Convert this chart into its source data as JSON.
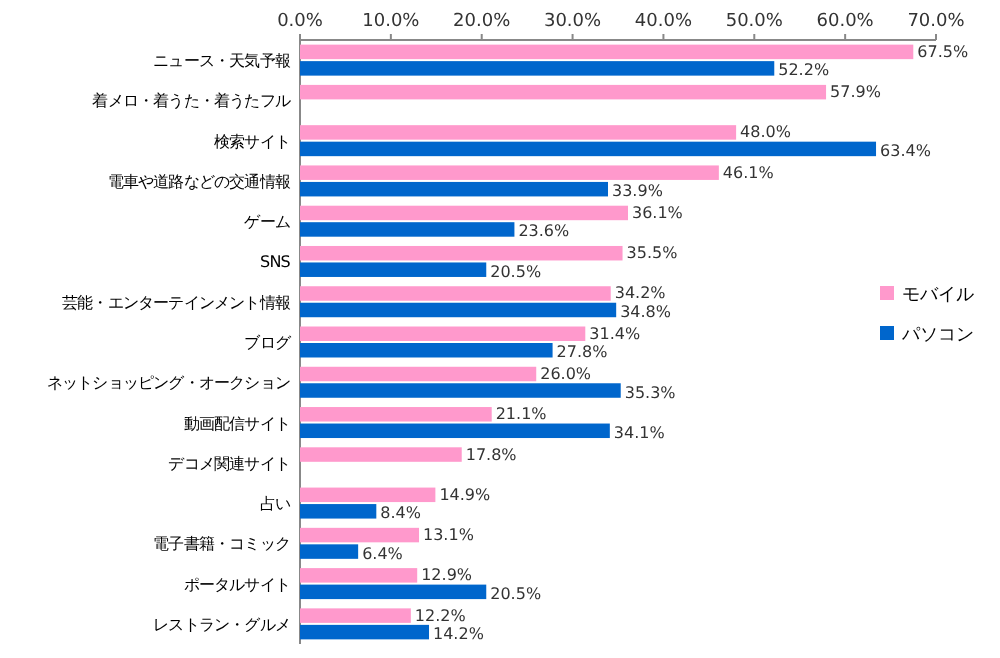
{
  "chart_data": {
    "type": "bar",
    "orientation": "horizontal",
    "categories": [
      "ニュース・天気予報",
      "着メロ・着うた・着うたフル",
      "検索サイト",
      "電車や道路などの交通情報",
      "ゲーム",
      "SNS",
      "芸能・エンターテインメント情報",
      "ブログ",
      "ネットショッピング・オークション",
      "動画配信サイト",
      "デコメ関連サイト",
      "占い",
      "電子書籍・コミック",
      "ポータルサイト",
      "レストラン・グルメ"
    ],
    "series": [
      {
        "name": "モバイル",
        "color": "#ff99cc",
        "values": [
          67.5,
          57.9,
          48.0,
          46.1,
          36.1,
          35.5,
          34.2,
          31.4,
          26.0,
          21.1,
          17.8,
          14.9,
          13.1,
          12.9,
          12.2
        ],
        "value_labels": [
          "67.5%",
          "57.9%",
          "48.0%",
          "46.1%",
          "36.1%",
          "35.5%",
          "34.2%",
          "31.4%",
          "26.0%",
          "21.1%",
          "17.8%",
          "14.9%",
          "13.1%",
          "12.9%",
          "12.2%"
        ]
      },
      {
        "name": "パソコン",
        "color": "#0066cc",
        "values": [
          52.2,
          null,
          63.4,
          33.9,
          23.6,
          20.5,
          34.8,
          27.8,
          35.3,
          34.1,
          null,
          8.4,
          6.4,
          20.5,
          14.2
        ],
        "value_labels": [
          "52.2%",
          null,
          "63.4%",
          "33.9%",
          "23.6%",
          "20.5%",
          "34.8%",
          "27.8%",
          "35.3%",
          "34.1%",
          null,
          "8.4%",
          "6.4%",
          "20.5%",
          "14.2%"
        ]
      }
    ],
    "xlim": [
      0,
      70
    ],
    "xticks": [
      {
        "value": 0,
        "label": "0.0%"
      },
      {
        "value": 10,
        "label": "10.0%"
      },
      {
        "value": 20,
        "label": "20.0%"
      },
      {
        "value": 30,
        "label": "30.0%"
      },
      {
        "value": 40,
        "label": "40.0%"
      },
      {
        "value": 50,
        "label": "50.0%"
      },
      {
        "value": 60,
        "label": "60.0%"
      },
      {
        "value": 70,
        "label": "70.0%"
      }
    ],
    "legend": "right"
  }
}
